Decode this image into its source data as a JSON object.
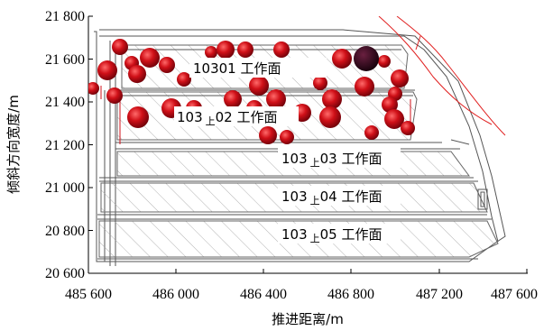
{
  "figure": {
    "x_axis_label": "推进距离/m",
    "y_axis_label": "倾斜方向宽度/m",
    "x_ticks": [
      "485 600",
      "486 000",
      "486 400",
      "486 800",
      "487 200",
      "487 600"
    ],
    "y_ticks": [
      "20 600",
      "20 800",
      "21 000",
      "21 200",
      "21 400",
      "21 600",
      "21 800"
    ]
  },
  "work_faces": [
    {
      "prefix": "10301",
      "sub": "",
      "suffix": " 工作面"
    },
    {
      "prefix": "103",
      "sub": "上",
      "suffix": "02 工作面"
    },
    {
      "prefix": "103",
      "sub": "上",
      "suffix": "03 工作面"
    },
    {
      "prefix": "103",
      "sub": "上",
      "suffix": "04 工作面"
    },
    {
      "prefix": "103",
      "sub": "上",
      "suffix": "05 工作面"
    }
  ],
  "colors": {
    "event_red": "#c8101a",
    "event_dark": "#3a0012",
    "fault_line": "#e02020",
    "hatch": "#9a9a9a",
    "outline": "#555555"
  }
}
